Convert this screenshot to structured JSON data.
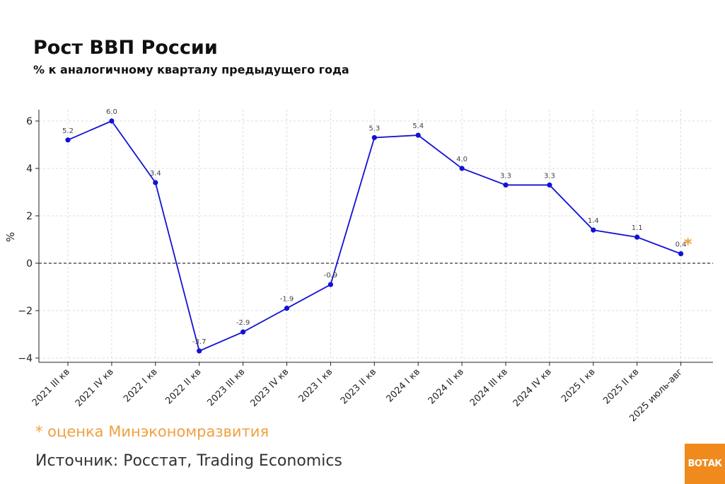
{
  "header": {
    "title": "Рост ВВП России",
    "subtitle": "% к аналогичному кварталу предыдущего года"
  },
  "chart_data": {
    "type": "line",
    "title": "Рост ВВП России",
    "subtitle": "% к аналогичному кварталу предыдущего года",
    "xlabel": "",
    "ylabel": "%",
    "ylim": [
      -4.2,
      6.5
    ],
    "yticks": [
      -4,
      -2,
      0,
      2,
      4,
      6
    ],
    "ytick_labels": [
      "−4",
      "−2",
      "0",
      "2",
      "4",
      "6"
    ],
    "grid": true,
    "zero_line": "dashed",
    "categories": [
      "2021 III кв",
      "2021 IV кв",
      "2022 I кв",
      "2022 II кв",
      "2023 III кв",
      "2023 IV кв",
      "2023 I кв",
      "2023 II кв",
      "2024 I кв",
      "2024 II кв",
      "2024 III кв",
      "2024 IV кв",
      "2025 I кв",
      "2025 II кв",
      "2025 июль-авг"
    ],
    "series": [
      {
        "values": [
          5.2,
          6.0,
          3.4,
          -3.7,
          -2.9,
          -1.9,
          -0.9,
          5.3,
          5.4,
          4.0,
          3.3,
          3.3,
          1.4,
          1.1,
          0.4
        ],
        "data_labels": [
          "5.2",
          "6.0",
          "3.4",
          "-3.7",
          "-2.9",
          "-1.9",
          "-0.9",
          "5.3",
          "5.4",
          "4.0",
          "3.3",
          "3.3",
          "1.4",
          "1.1",
          "0.4"
        ],
        "color": "#1212d6"
      }
    ],
    "annotations": [
      {
        "text": "*",
        "category": "2025 июль-авг",
        "value": 1.0,
        "color": "#f0a040"
      }
    ]
  },
  "footer": {
    "note": "* оценка Минэкономразвития",
    "source": "Источник: Росстат, Trading Economics"
  },
  "logo": {
    "text": "ВОТ",
    "text2": "АК"
  },
  "colors": {
    "line": "#1212d6",
    "accent": "#f08a1c",
    "note": "#f0a040"
  }
}
